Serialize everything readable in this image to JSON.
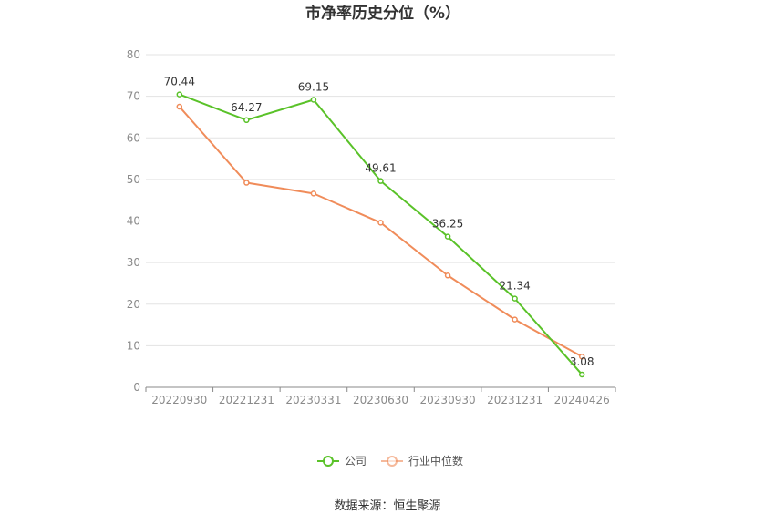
{
  "title": "市净率历史分位（%）",
  "source": "数据来源：恒生聚源",
  "chart_data": {
    "type": "line",
    "title": "市净率历史分位（%）",
    "categories": [
      "20220930",
      "20221231",
      "20230331",
      "20230630",
      "20230930",
      "20231231",
      "20240426"
    ],
    "series": [
      {
        "name": "公司",
        "color": "#5ac229",
        "values": [
          70.44,
          64.27,
          69.15,
          49.61,
          36.25,
          21.34,
          3.08
        ],
        "show_labels": true
      },
      {
        "name": "行业中位数",
        "color": "#f08c5a",
        "values": [
          67.5,
          49.2,
          46.6,
          39.6,
          26.9,
          16.3,
          7.4
        ],
        "show_labels": false
      }
    ],
    "ylim": [
      0,
      80
    ],
    "yticks": [
      0,
      10,
      20,
      30,
      40,
      50,
      60,
      70,
      80
    ],
    "grid": true,
    "legend": "bottom-center"
  }
}
